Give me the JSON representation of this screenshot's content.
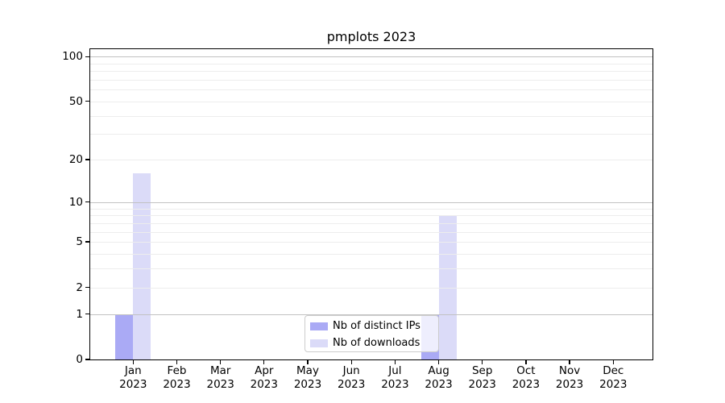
{
  "figure": {
    "title": "pmplots 2023"
  },
  "chart_data": {
    "type": "bar",
    "title": "pmplots 2023",
    "categories": [
      "Jan",
      "Feb",
      "Mar",
      "Apr",
      "May",
      "Jun",
      "Jul",
      "Aug",
      "Sep",
      "Oct",
      "Nov",
      "Dec"
    ],
    "x_year_label": "2023",
    "series": [
      {
        "name": "Nb of distinct IPs",
        "color": "#aaaaf5",
        "values": [
          1,
          0,
          0,
          0,
          0,
          0,
          0,
          1,
          0,
          0,
          0,
          0
        ]
      },
      {
        "name": "Nb of downloads",
        "color": "#dbdbf8",
        "values": [
          16,
          0,
          0,
          0,
          0,
          0,
          0,
          8,
          0,
          0,
          0,
          0
        ]
      }
    ],
    "y_axis": {
      "scale": "log1p",
      "tick_labels": [
        0,
        1,
        2,
        5,
        10,
        20,
        50,
        100
      ],
      "major_gridlines": [
        1,
        10,
        100
      ],
      "minor_gridlines": [
        3,
        4,
        6,
        7,
        8,
        9,
        30,
        40,
        60,
        70,
        80,
        90
      ],
      "ylim": [
        0,
        112
      ]
    },
    "legend": {
      "position": "lower-center"
    },
    "grid": true
  }
}
